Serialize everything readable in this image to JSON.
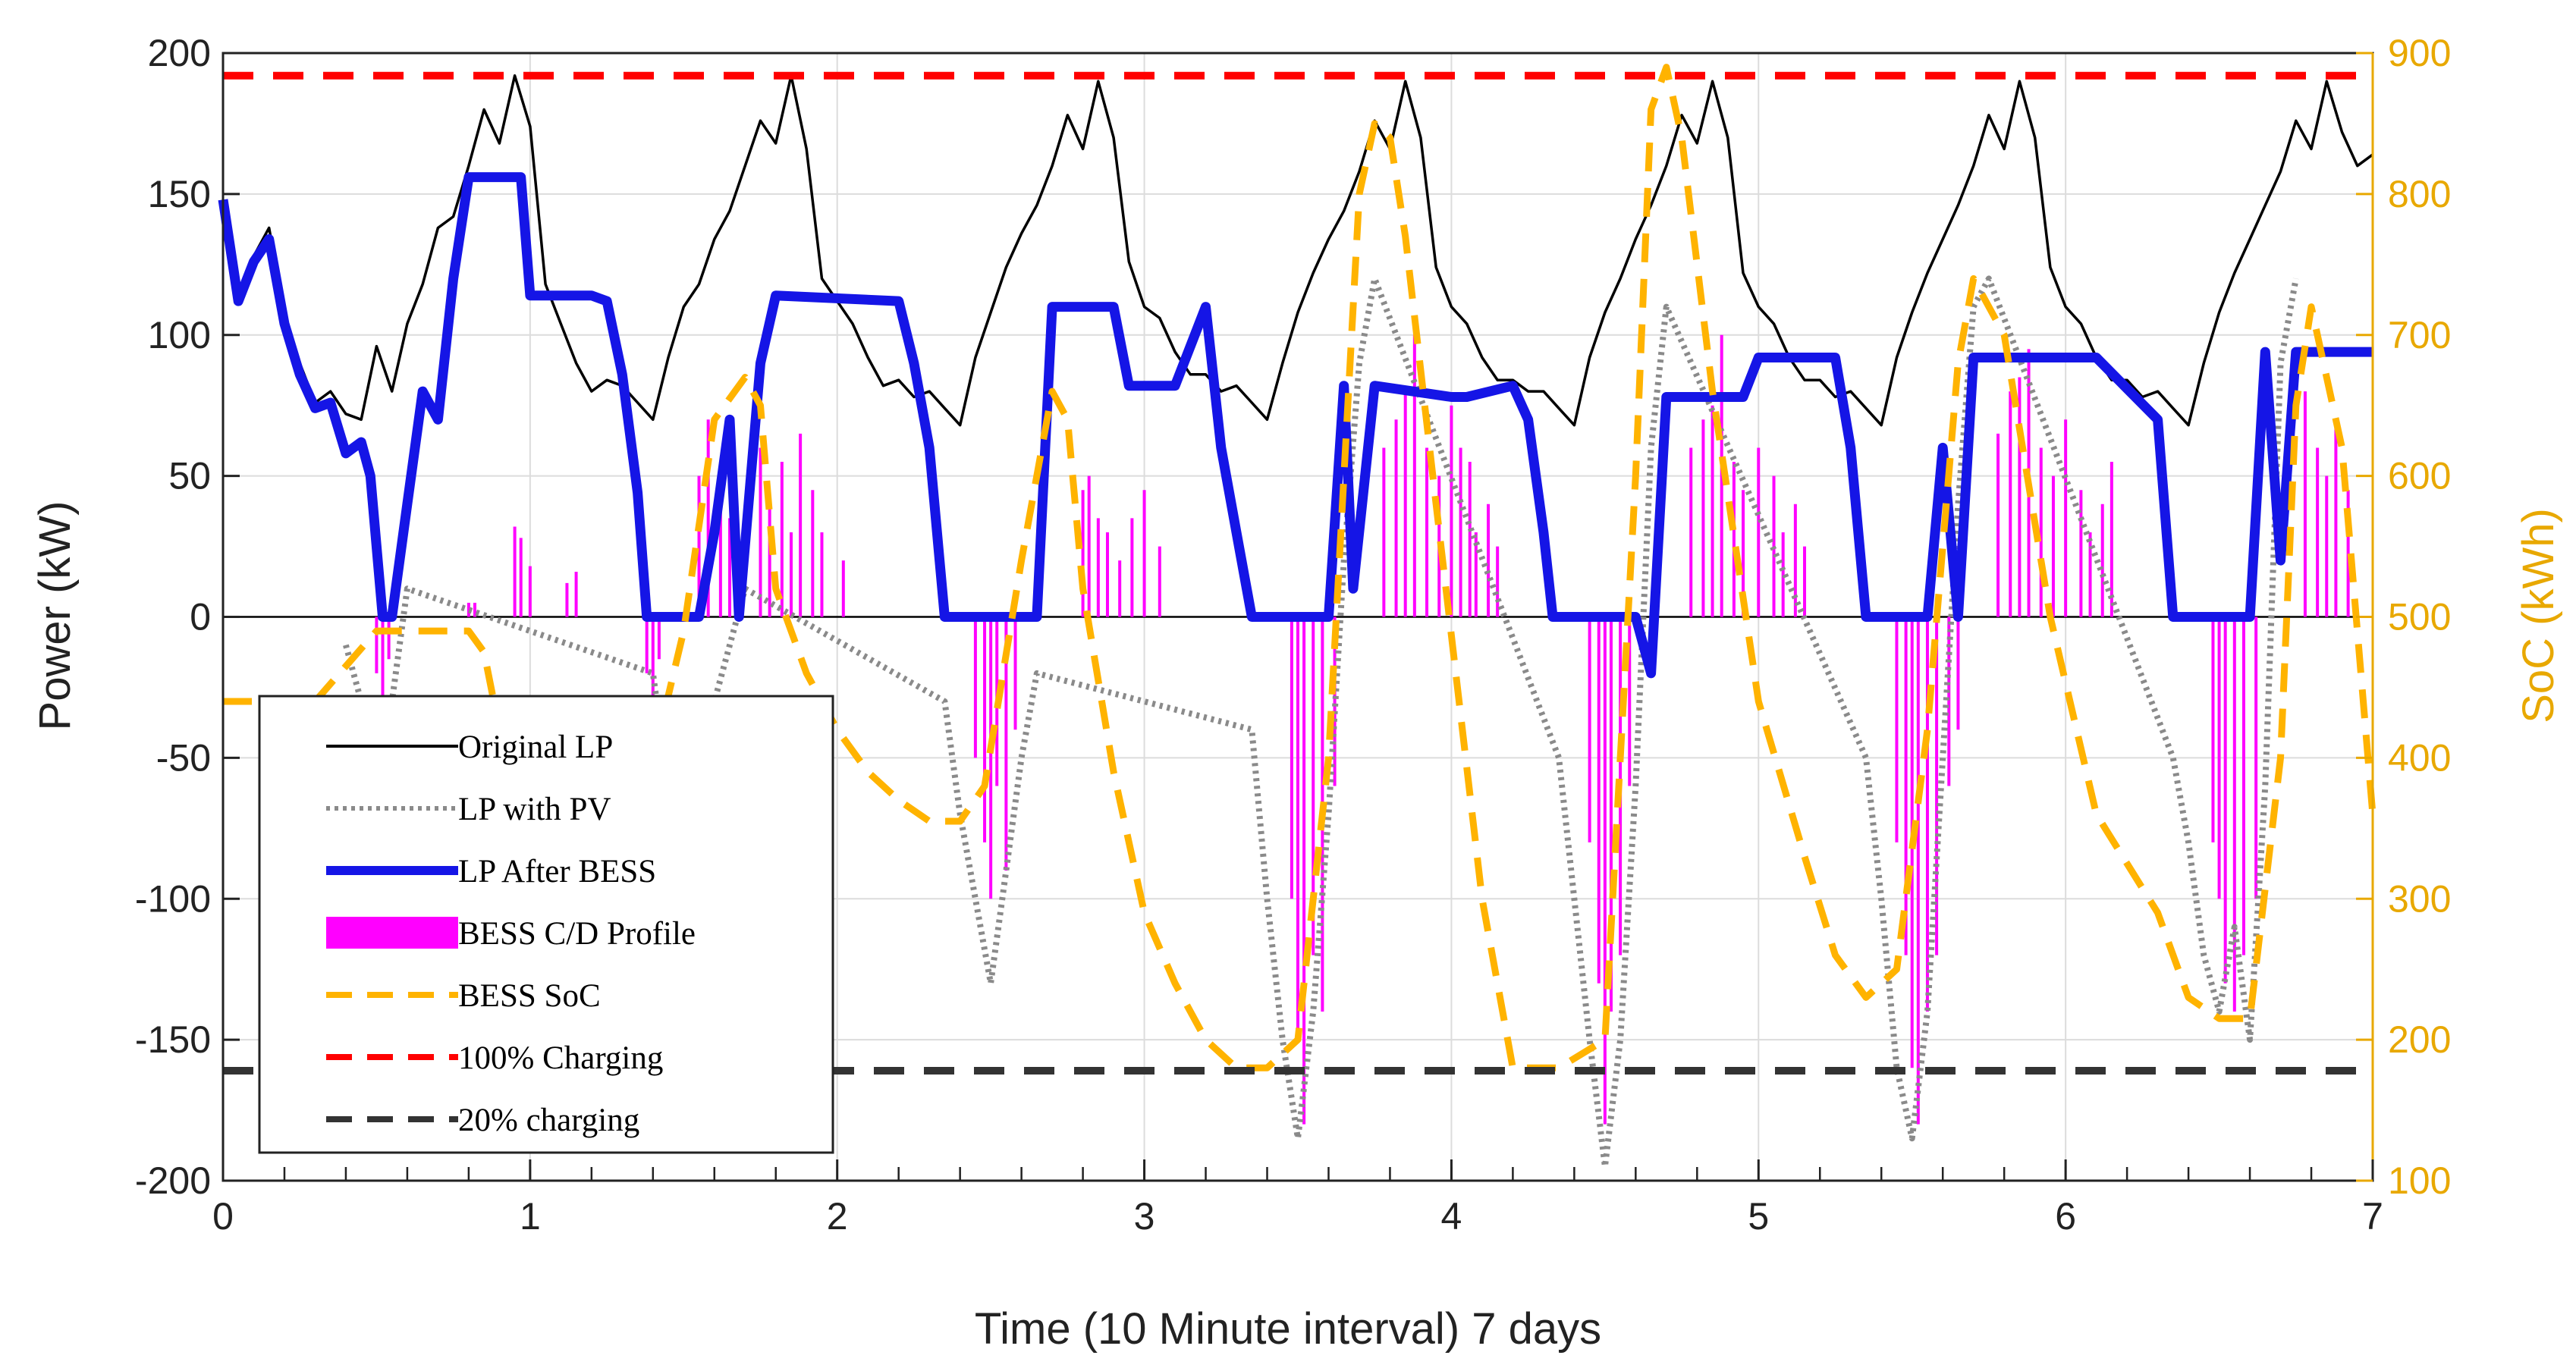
{
  "chart_data": {
    "type": "line",
    "title": "",
    "xlabel": "Time (10 Minute interval) 7 days",
    "ylabel_left": "Power (kW)",
    "ylabel_right": "SoC (kWh)",
    "xlim": [
      0,
      7
    ],
    "ylim_left": [
      -200,
      200
    ],
    "ylim_right": [
      100,
      900
    ],
    "x_ticks": [
      "0",
      "1",
      "2",
      "3",
      "4",
      "5",
      "6",
      "7"
    ],
    "y_ticks_left": [
      "200",
      "150",
      "100",
      "50",
      "0",
      "-50",
      "-100",
      "-150",
      "-200"
    ],
    "y_ticks_right": [
      "900",
      "800",
      "700",
      "600",
      "500",
      "400",
      "300",
      "200",
      "100"
    ],
    "grid": true,
    "legend_position": "bottom-left",
    "colors": {
      "original": "#000000",
      "pv": "#8a8a8a",
      "after": "#1515e6",
      "cd": "#ff00ff",
      "soc": "#ffb300",
      "charge100": "#ff0000",
      "charge20": "#333333",
      "right_axis": "#e8a800"
    },
    "legend": [
      {
        "key": "original",
        "label": "Original LP"
      },
      {
        "key": "pv",
        "label": "LP with PV"
      },
      {
        "key": "after",
        "label": "LP After BESS"
      },
      {
        "key": "cd",
        "label": "BESS C/D Profile"
      },
      {
        "key": "soc",
        "label": "BESS SoC"
      },
      {
        "key": "charge100",
        "label": "100% Charging"
      },
      {
        "key": "charge20",
        "label": "20% charging"
      }
    ],
    "series": [
      {
        "name": "Original LP",
        "axis": "left",
        "x": [
          0,
          0.05,
          0.1,
          0.15,
          0.2,
          0.25,
          0.3,
          0.35,
          0.4,
          0.45,
          0.5,
          0.55,
          0.6,
          0.65,
          0.7,
          0.75,
          0.8,
          0.85,
          0.9,
          0.95,
          1.0,
          1.05,
          1.1,
          1.15,
          1.2,
          1.25,
          1.3,
          1.35,
          1.4,
          1.45,
          1.5,
          1.55,
          1.6,
          1.65,
          1.7,
          1.75,
          1.8,
          1.85,
          1.9,
          1.95,
          2.0,
          2.05,
          2.1,
          2.15,
          2.2,
          2.25,
          2.3,
          2.35,
          2.4,
          2.45,
          2.5,
          2.55,
          2.6,
          2.65,
          2.7,
          2.75,
          2.8,
          2.85,
          2.9,
          2.95,
          3.0,
          3.05,
          3.1,
          3.15,
          3.2,
          3.25,
          3.3,
          3.35,
          3.4,
          3.45,
          3.5,
          3.55,
          3.6,
          3.65,
          3.7,
          3.75,
          3.8,
          3.85,
          3.9,
          3.95,
          4.0,
          4.05,
          4.1,
          4.15,
          4.2,
          4.25,
          4.3,
          4.35,
          4.4,
          4.45,
          4.5,
          4.55,
          4.6,
          4.65,
          4.7,
          4.75,
          4.8,
          4.85,
          4.9,
          4.95,
          5.0,
          5.05,
          5.1,
          5.15,
          5.2,
          5.25,
          5.3,
          5.35,
          5.4,
          5.45,
          5.5,
          5.55,
          5.6,
          5.65,
          5.7,
          5.75,
          5.8,
          5.85,
          5.9,
          5.95,
          6.0,
          6.05,
          6.1,
          6.15,
          6.2,
          6.25,
          6.3,
          6.35,
          6.4,
          6.45,
          6.5,
          6.55,
          6.6,
          6.65,
          6.7,
          6.75,
          6.8,
          6.85,
          6.9,
          6.95,
          7.0
        ],
        "y": [
          148,
          112,
          128,
          138,
          108,
          90,
          76,
          80,
          72,
          70,
          96,
          80,
          104,
          118,
          138,
          142,
          160,
          180,
          168,
          192,
          174,
          118,
          104,
          90,
          80,
          84,
          82,
          76,
          70,
          92,
          110,
          118,
          134,
          144,
          160,
          176,
          168,
          192,
          166,
          120,
          112,
          104,
          92,
          82,
          84,
          78,
          80,
          74,
          68,
          92,
          108,
          124,
          136,
          146,
          160,
          178,
          166,
          190,
          170,
          126,
          110,
          106,
          94,
          86,
          86,
          80,
          82,
          76,
          70,
          90,
          108,
          122,
          134,
          144,
          158,
          176,
          166,
          190,
          170,
          124,
          110,
          104,
          92,
          84,
          84,
          80,
          80,
          74,
          68,
          92,
          108,
          120,
          134,
          146,
          160,
          178,
          168,
          190,
          170,
          122,
          110,
          104,
          92,
          84,
          84,
          78,
          80,
          74,
          68,
          92,
          108,
          122,
          134,
          146,
          160,
          178,
          166,
          190,
          170,
          124,
          110,
          104,
          92,
          84,
          84,
          78,
          80,
          74,
          68,
          90,
          108,
          122,
          134,
          146,
          158,
          176,
          166,
          190,
          172,
          160,
          164
        ]
      },
      {
        "name": "LP with PV",
        "axis": "left",
        "x": [
          0.4,
          0.45,
          0.5,
          0.55,
          0.6,
          1.4,
          1.45,
          1.5,
          1.55,
          1.6,
          1.65,
          1.7,
          2.35,
          2.4,
          2.45,
          2.5,
          2.55,
          2.6,
          2.65,
          3.35,
          3.4,
          3.45,
          3.5,
          3.55,
          3.6,
          3.65,
          3.7,
          3.75,
          4.35,
          4.4,
          4.45,
          4.5,
          4.55,
          4.6,
          4.65,
          4.7,
          5.35,
          5.4,
          5.45,
          5.5,
          5.55,
          5.6,
          5.65,
          5.7,
          5.75,
          6.35,
          6.4,
          6.45,
          6.5,
          6.55,
          6.6,
          6.65,
          6.7,
          6.75
        ],
        "y": [
          -10,
          -30,
          -60,
          -30,
          10,
          -20,
          -60,
          -80,
          -40,
          -30,
          -10,
          10,
          -30,
          -70,
          -100,
          -130,
          -90,
          -50,
          -20,
          -40,
          -100,
          -150,
          -185,
          -140,
          -70,
          20,
          90,
          120,
          -50,
          -100,
          -150,
          -195,
          -150,
          -60,
          60,
          110,
          -50,
          -100,
          -160,
          -185,
          -140,
          -50,
          40,
          110,
          120,
          -50,
          -80,
          -120,
          -140,
          -110,
          -150,
          -60,
          90,
          120
        ]
      },
      {
        "name": "LP After BESS",
        "axis": "left",
        "x": [
          0,
          0.05,
          0.1,
          0.15,
          0.2,
          0.25,
          0.3,
          0.35,
          0.4,
          0.45,
          0.48,
          0.52,
          0.55,
          0.6,
          0.65,
          0.7,
          0.75,
          0.8,
          0.85,
          0.97,
          1.0,
          1.2,
          1.25,
          1.3,
          1.35,
          1.38,
          1.42,
          1.55,
          1.6,
          1.65,
          1.68,
          1.75,
          1.8,
          2.2,
          2.25,
          2.3,
          2.35,
          2.4,
          2.6,
          2.65,
          2.7,
          2.9,
          2.95,
          3.1,
          3.2,
          3.25,
          3.3,
          3.35,
          3.6,
          3.65,
          3.68,
          3.75,
          4.0,
          4.05,
          4.2,
          4.25,
          4.3,
          4.33,
          4.37,
          4.6,
          4.65,
          4.7,
          4.75,
          4.95,
          5.0,
          5.1,
          5.15,
          5.25,
          5.3,
          5.35,
          5.4,
          5.55,
          5.6,
          5.65,
          5.7,
          5.75,
          5.8,
          6.0,
          6.1,
          6.3,
          6.35,
          6.4,
          6.6,
          6.65,
          6.7,
          6.75,
          6.8,
          6.85,
          7.0
        ],
        "y": [
          148,
          112,
          126,
          134,
          104,
          86,
          74,
          76,
          58,
          62,
          50,
          0,
          0,
          40,
          80,
          70,
          120,
          156,
          156,
          156,
          114,
          114,
          112,
          86,
          44,
          0,
          0,
          0,
          30,
          70,
          0,
          90,
          114,
          112,
          90,
          60,
          0,
          0,
          0,
          0,
          110,
          110,
          82,
          82,
          110,
          60,
          30,
          0,
          0,
          82,
          10,
          82,
          78,
          78,
          82,
          70,
          30,
          0,
          0,
          0,
          -20,
          78,
          78,
          78,
          92,
          92,
          92,
          92,
          60,
          0,
          0,
          0,
          60,
          0,
          92,
          92,
          92,
          92,
          92,
          70,
          0,
          0,
          0,
          94,
          20,
          94,
          94,
          94,
          94
        ]
      },
      {
        "name": "BESS C/D Profile",
        "axis": "left",
        "type": "bars",
        "x": [
          0.5,
          0.52,
          0.54,
          0.8,
          0.82,
          0.95,
          0.97,
          1.0,
          1.12,
          1.15,
          1.38,
          1.4,
          1.42,
          1.55,
          1.58,
          1.62,
          1.65,
          1.68,
          1.75,
          1.78,
          1.82,
          1.85,
          1.88,
          1.92,
          1.95,
          2.02,
          2.45,
          2.48,
          2.5,
          2.52,
          2.55,
          2.58,
          2.8,
          2.82,
          2.85,
          2.88,
          2.92,
          2.96,
          3.0,
          3.05,
          3.48,
          3.5,
          3.52,
          3.55,
          3.58,
          3.62,
          3.78,
          3.82,
          3.85,
          3.88,
          3.92,
          3.96,
          4.0,
          4.03,
          4.06,
          4.08,
          4.12,
          4.15,
          4.45,
          4.48,
          4.5,
          4.52,
          4.55,
          4.58,
          4.78,
          4.82,
          4.85,
          4.88,
          4.92,
          4.95,
          5.0,
          5.05,
          5.08,
          5.12,
          5.15,
          5.45,
          5.48,
          5.5,
          5.52,
          5.55,
          5.58,
          5.62,
          5.65,
          5.78,
          5.82,
          5.85,
          5.88,
          5.92,
          5.96,
          6.0,
          6.05,
          6.08,
          6.12,
          6.15,
          6.48,
          6.5,
          6.52,
          6.55,
          6.58,
          6.62,
          6.78,
          6.82,
          6.85,
          6.88,
          6.92
        ],
        "y": [
          -20,
          -30,
          -15,
          5,
          5,
          32,
          28,
          18,
          12,
          16,
          -20,
          -40,
          -15,
          50,
          70,
          50,
          35,
          25,
          60,
          40,
          55,
          30,
          65,
          45,
          30,
          20,
          -50,
          -80,
          -100,
          -60,
          -90,
          -40,
          45,
          50,
          35,
          30,
          20,
          35,
          45,
          25,
          -100,
          -150,
          -180,
          -120,
          -140,
          -60,
          60,
          70,
          80,
          100,
          60,
          50,
          75,
          60,
          55,
          30,
          40,
          25,
          -80,
          -130,
          -180,
          -140,
          -120,
          -60,
          60,
          70,
          75,
          100,
          55,
          45,
          60,
          50,
          30,
          40,
          25,
          -80,
          -120,
          -160,
          -180,
          -140,
          -120,
          -60,
          -40,
          65,
          80,
          85,
          95,
          60,
          50,
          70,
          45,
          30,
          40,
          55,
          -80,
          -100,
          -130,
          -140,
          -120,
          -100,
          80,
          60,
          50,
          70,
          45
        ]
      },
      {
        "name": "BESS SoC",
        "axis": "right",
        "x": [
          0,
          0.1,
          0.3,
          0.5,
          0.6,
          0.8,
          0.85,
          0.9,
          1.0,
          1.1,
          1.2,
          1.3,
          1.38,
          1.5,
          1.6,
          1.7,
          1.75,
          1.8,
          1.9,
          2.0,
          2.1,
          2.2,
          2.3,
          2.4,
          2.48,
          2.6,
          2.7,
          2.75,
          2.8,
          2.9,
          3.0,
          3.1,
          3.2,
          3.3,
          3.4,
          3.5,
          3.6,
          3.7,
          3.75,
          3.8,
          3.85,
          3.95,
          4.1,
          4.2,
          4.35,
          4.5,
          4.6,
          4.65,
          4.7,
          4.75,
          4.85,
          5.0,
          5.15,
          5.25,
          5.35,
          5.45,
          5.55,
          5.65,
          5.7,
          5.8,
          5.95,
          6.1,
          6.3,
          6.4,
          6.5,
          6.6,
          6.7,
          6.75,
          6.8,
          6.9,
          7.0
        ],
        "y": [
          440,
          440,
          440,
          490,
          490,
          490,
          475,
          420,
          330,
          290,
          270,
          220,
          380,
          490,
          640,
          670,
          650,
          520,
          460,
          420,
          390,
          370,
          355,
          355,
          380,
          540,
          660,
          640,
          520,
          390,
          290,
          240,
          200,
          180,
          180,
          200,
          400,
          800,
          850,
          840,
          770,
          580,
          300,
          180,
          180,
          200,
          600,
          860,
          890,
          840,
          660,
          440,
          330,
          260,
          230,
          250,
          420,
          680,
          740,
          700,
          500,
          360,
          290,
          230,
          215,
          215,
          400,
          650,
          720,
          620,
          360
        ]
      },
      {
        "name": "100% Charging",
        "axis": "left",
        "x": [
          0,
          7
        ],
        "y": [
          192,
          192
        ]
      },
      {
        "name": "20% charging",
        "axis": "left",
        "x": [
          0,
          7
        ],
        "y": [
          -161,
          -161
        ]
      }
    ]
  }
}
